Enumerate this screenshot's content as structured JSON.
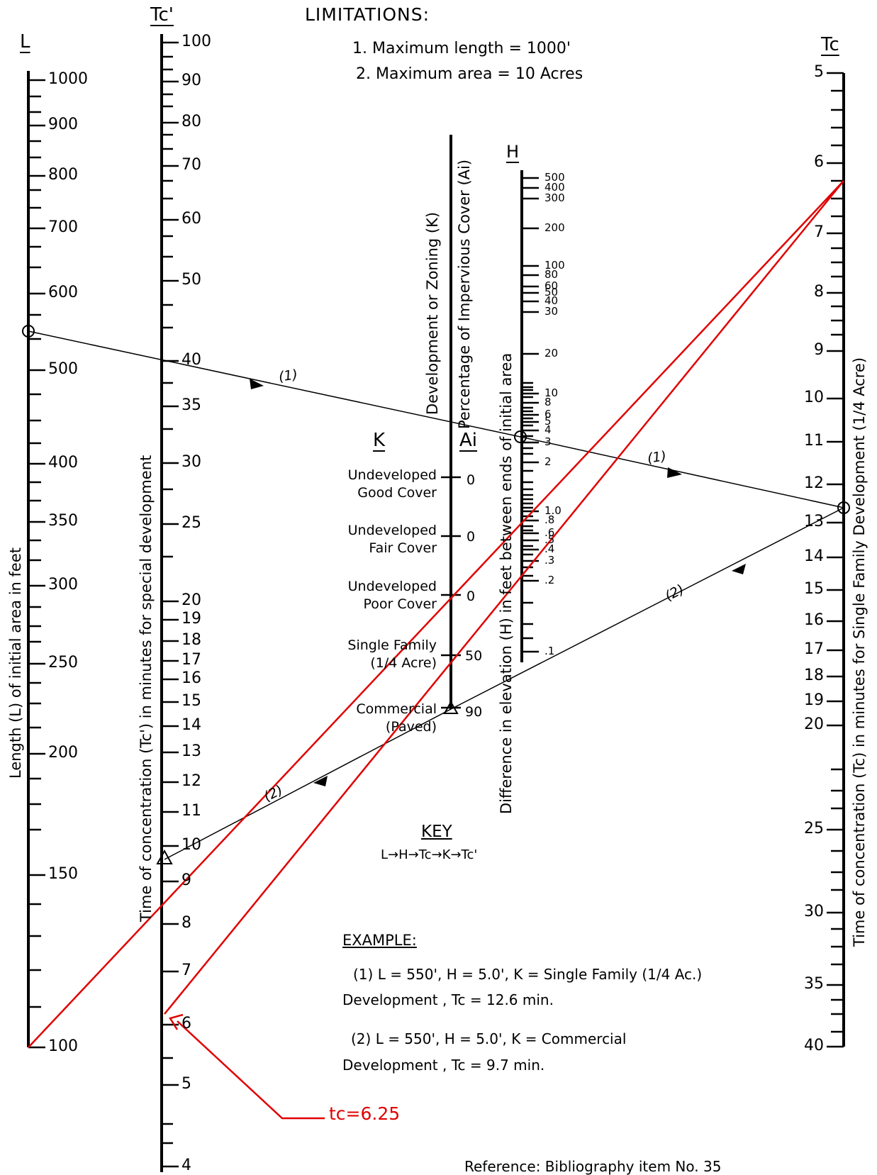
{
  "limitations": {
    "title": "LIMITATIONS:",
    "items": [
      "1. Maximum length = 1000'",
      "2. Maximum area = 10 Acres"
    ]
  },
  "axes": {
    "L": {
      "header": "L",
      "label": "Length (L) of initial area in feet",
      "ticks": [
        "1000",
        "900",
        "800",
        "700",
        "600",
        "500",
        "400",
        "350",
        "300",
        "250",
        "200",
        "150",
        "100"
      ]
    },
    "Tcp": {
      "header": "Tc'",
      "label": "Time of concentration (Tc') in minutes for special development",
      "ticks": [
        "100",
        "90",
        "80",
        "70",
        "60",
        "50",
        "40",
        "35",
        "30",
        "25",
        "20",
        "19",
        "18",
        "17",
        "16",
        "15",
        "14",
        "13",
        "12",
        "11",
        "10",
        "9",
        "8",
        "7",
        "6",
        "5",
        "4"
      ]
    },
    "K": {
      "header": "K",
      "label": "Development or Zoning (K)",
      "items": [
        {
          "name": "Undeveloped Good Cover",
          "line1": "Undeveloped",
          "line2": "Good Cover"
        },
        {
          "name": "Undeveloped Fair Cover",
          "line1": "Undeveloped",
          "line2": "Fair Cover"
        },
        {
          "name": "Undeveloped Poor Cover",
          "line1": "Undeveloped",
          "line2": "Poor Cover"
        },
        {
          "name": "Single Family (1/4 Acre)",
          "line1": "Single Family",
          "line2": "(1/4 Acre)"
        },
        {
          "name": "Commercial (Paved)",
          "line1": "Commercial",
          "line2": "(Paved)"
        }
      ]
    },
    "Ai": {
      "header": "Ai",
      "label": "Percentage of Impervious Cover (Ai)",
      "values": [
        "0",
        "0",
        "0",
        "50",
        "90"
      ]
    },
    "H": {
      "header": "H",
      "label": "Difference in elevation (H) in feet between ends of initial area",
      "ticks": [
        "500",
        "400",
        "300",
        "200",
        "100",
        "80",
        "60",
        "50",
        "40",
        "30",
        "20",
        "10",
        "8",
        "6",
        "5",
        "4",
        "3",
        "2",
        "1.0",
        ".8",
        ".6",
        ".5",
        ".4",
        ".3",
        ".2",
        ".1"
      ]
    },
    "Tc": {
      "header": "Tc",
      "label": "Time of concentration (Tc) in minutes for Single Family Development (1/4 Acre)",
      "ticks": [
        "5",
        "6",
        "7",
        "8",
        "9",
        "10",
        "11",
        "12",
        "13",
        "14",
        "15",
        "16",
        "17",
        "18",
        "19",
        "20",
        "25",
        "30",
        "35",
        "40"
      ]
    }
  },
  "paths": {
    "label1": "(1)",
    "label2": "(2)"
  },
  "key": {
    "title": "KEY",
    "sequence": "L→H→Tc→K→Tc'"
  },
  "example": {
    "title": "EXAMPLE:",
    "line1a": "(1) L = 550', H = 5.0', K = Single Family (1/4 Ac.)",
    "line1b": "Development , Tc = 12.6 min.",
    "line2a": "(2) L = 550', H = 5.0', K = Commercial",
    "line2b": "Development , Tc = 9.7 min."
  },
  "annotation": {
    "text": "tc=6.25",
    "color": "#e00000"
  },
  "reference": "Reference: Bibliography item No. 35"
}
